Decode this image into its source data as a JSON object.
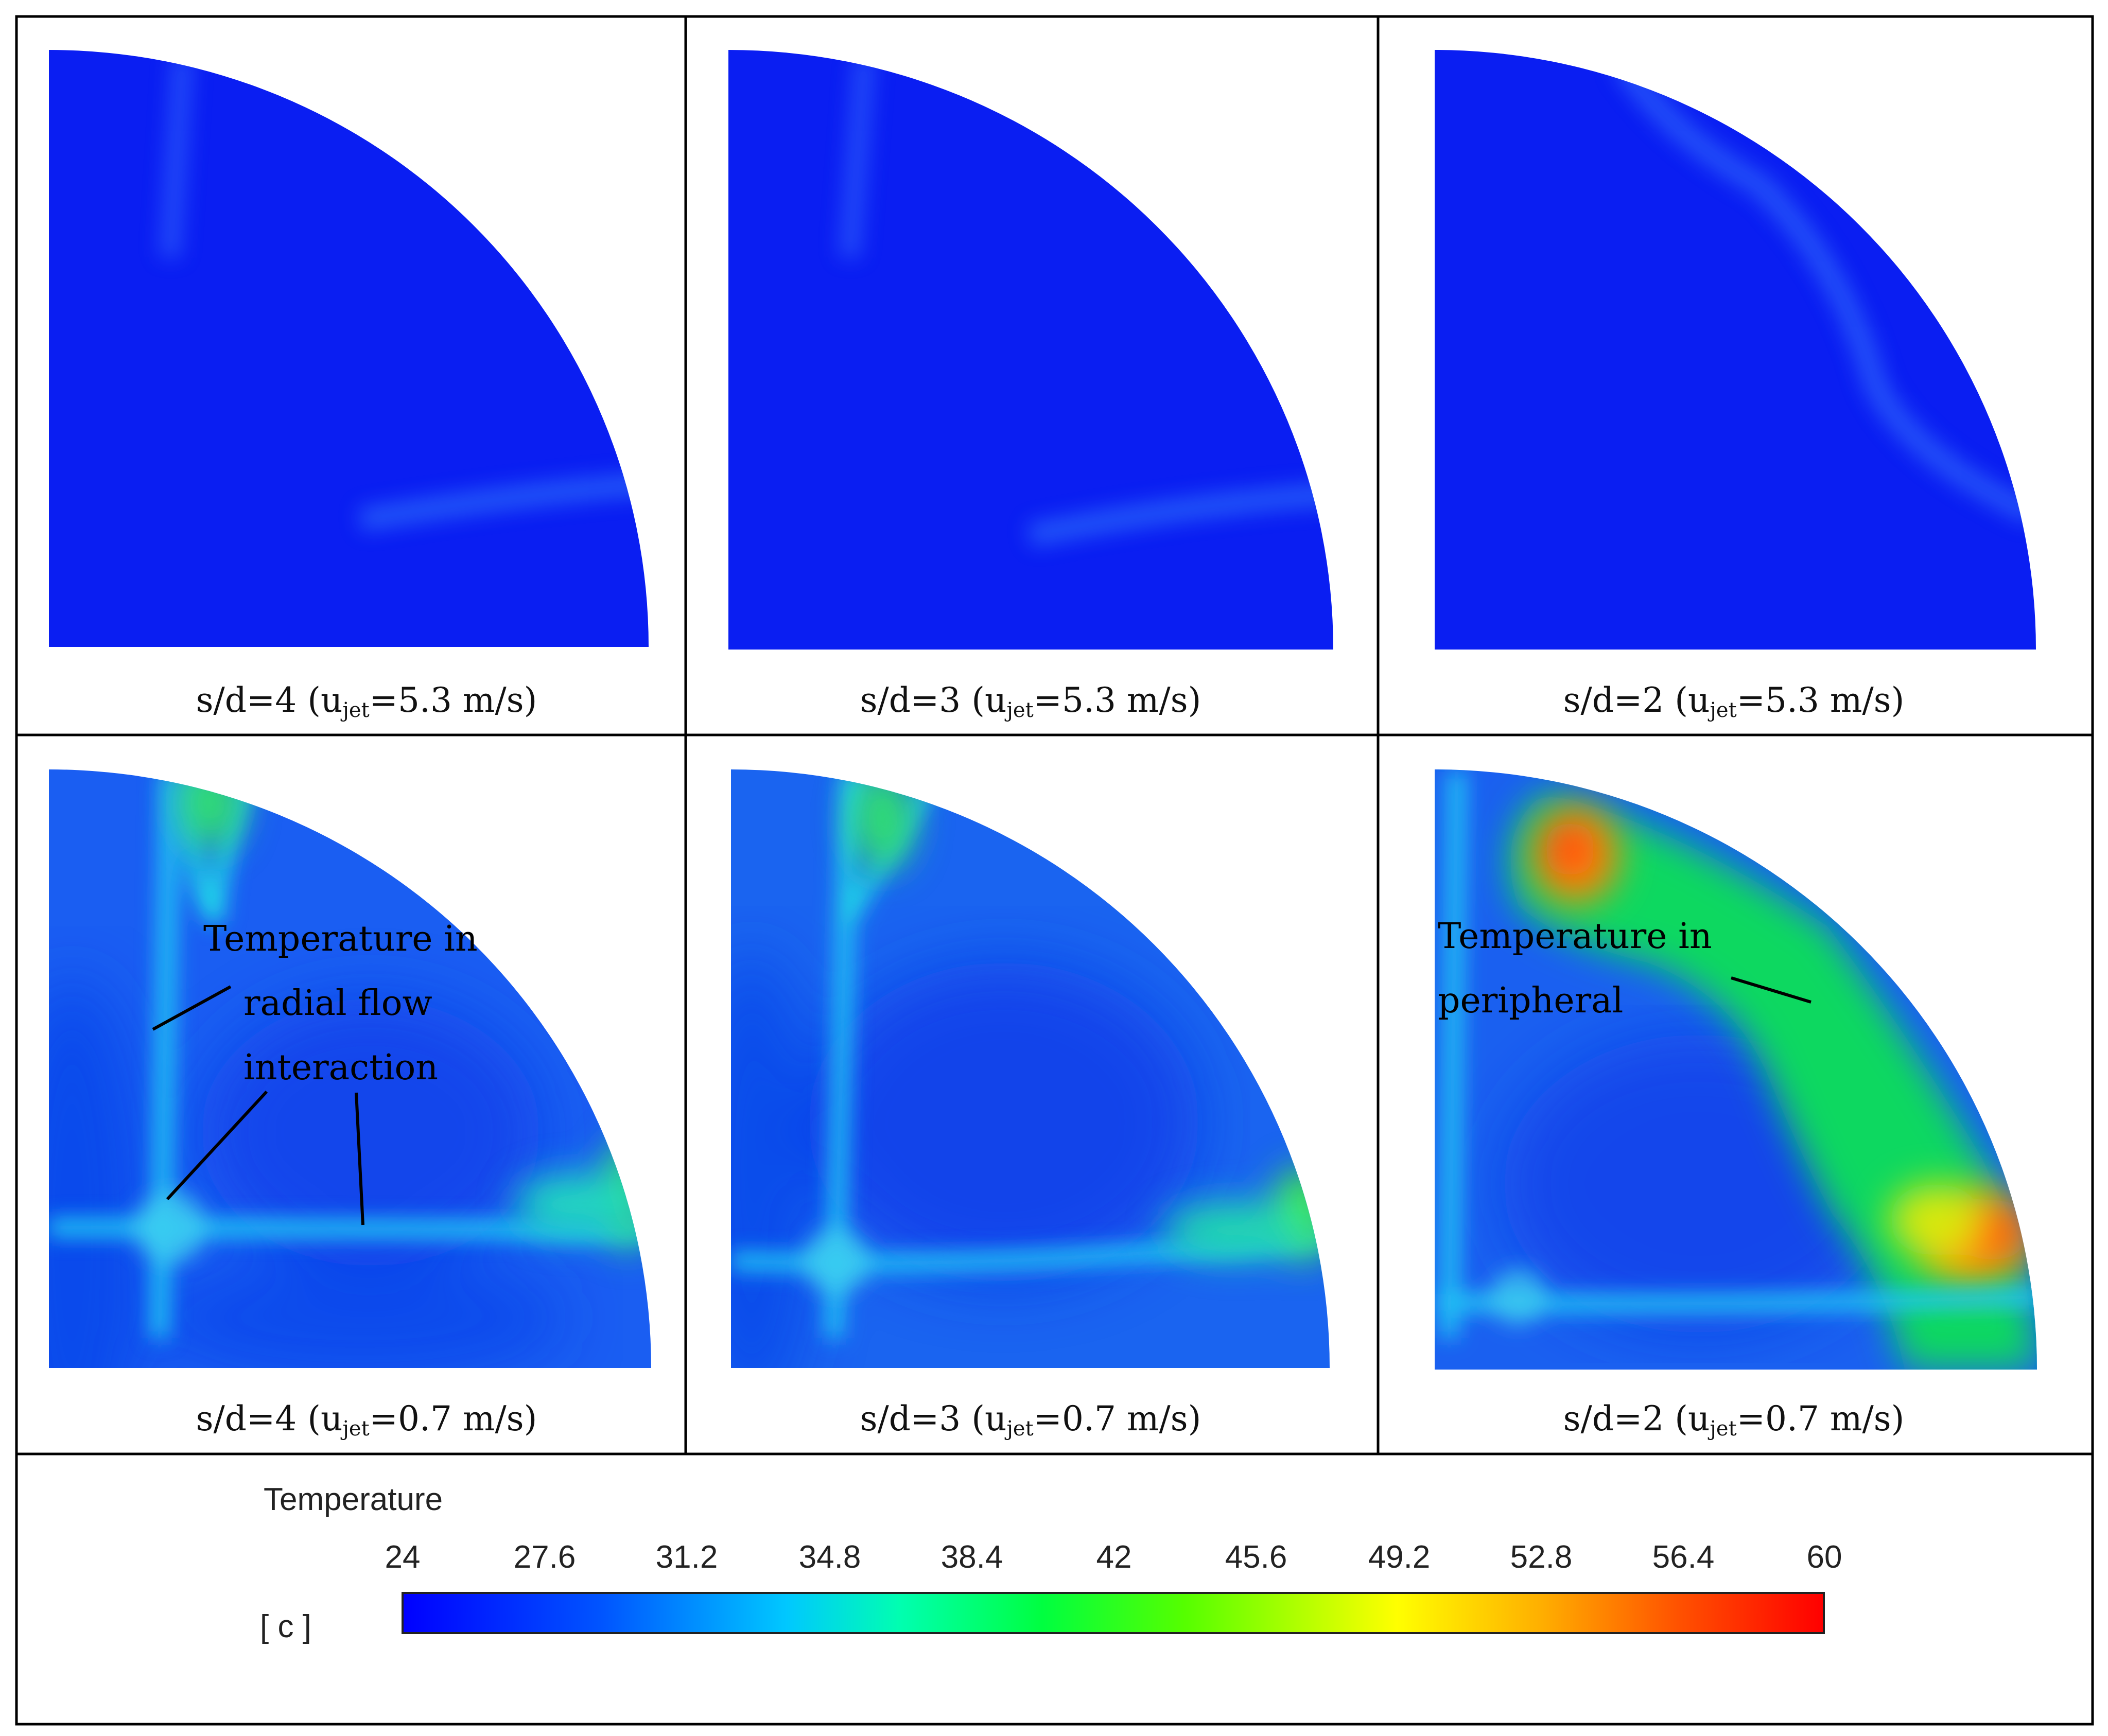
{
  "panels": [
    {
      "id": "top-left",
      "pre": "s/d=4 (u",
      "sub": "jet",
      "post": "=5.3 m/s)"
    },
    {
      "id": "top-mid",
      "pre": "s/d=3 (u",
      "sub": "jet",
      "post": "=5.3 m/s)"
    },
    {
      "id": "top-right",
      "pre": "s/d=2 (u",
      "sub": "jet",
      "post": "=5.3 m/s)"
    },
    {
      "id": "bot-left",
      "pre": "s/d=4 (u",
      "sub": "jet",
      "post": "=0.7 m/s)"
    },
    {
      "id": "bot-mid",
      "pre": "s/d=3 (u",
      "sub": "jet",
      "post": "=0.7 m/s)"
    },
    {
      "id": "bot-right",
      "pre": "s/d=2 (u",
      "sub": "jet",
      "post": "=0.7 m/s)"
    }
  ],
  "annotations": {
    "radial_l1": "Temperature in",
    "radial_l2": "radial flow",
    "radial_l3": "interaction",
    "periph_l1": "Temperature in",
    "periph_l2": "peripheral"
  },
  "legend": {
    "title": "Temperature",
    "unit": "[ c ]",
    "ticks": [
      "24",
      "27.6",
      "31.2",
      "34.8",
      "38.4",
      "42",
      "45.6",
      "49.2",
      "52.8",
      "56.4",
      "60"
    ]
  }
}
